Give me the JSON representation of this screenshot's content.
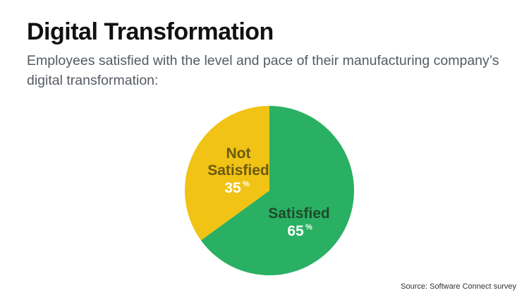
{
  "title": "Digital Transformation",
  "subtitle": "Employees satisfied with the level and pace of their manufacturing company’s digital transformation:",
  "source": "Source: Software Connect survey",
  "chart_data": {
    "type": "pie",
    "slices": [
      {
        "label": "Satisfied",
        "value": 65,
        "value_text": "65",
        "unit": "%",
        "color": "#2ab062",
        "label_color": "#1d4a2c"
      },
      {
        "label": "Not Satisfied",
        "label_lines": [
          "Not",
          "Satisfied"
        ],
        "value": 35,
        "value_text": "35",
        "unit": "%",
        "color": "#f0c314",
        "label_color": "#6a5a10"
      }
    ],
    "start": "top",
    "direction": "clockwise"
  }
}
